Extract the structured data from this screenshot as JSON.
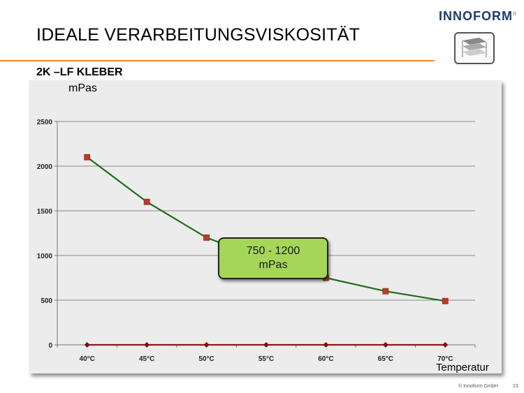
{
  "header": {
    "title": "IDEALE VERARBEITUNGSVISKOSITÄT",
    "logo_text": "INNOFORM",
    "logo_mark": "®",
    "subtitle": "2K –LF KLEBER"
  },
  "chart_data": {
    "type": "line",
    "categories": [
      "40°C",
      "45°C",
      "50°C",
      "55°C",
      "60°C",
      "65°C",
      "70°C"
    ],
    "series": [
      {
        "values": [
          2100,
          1600,
          1200,
          950,
          750,
          600,
          490
        ],
        "color": "#1a6e1a",
        "marker": "square",
        "marker_color": "#c0392b"
      },
      {
        "values": [
          0,
          0,
          0,
          0,
          0,
          0,
          0
        ],
        "color": "#8b1a1a",
        "marker": "diamond",
        "marker_color": "#7a1010"
      }
    ],
    "yticks": [
      0,
      500,
      1000,
      1500,
      2000,
      2500
    ],
    "ylim": [
      0,
      2500
    ],
    "ylabel": "mPas",
    "xlabel": "Temperatur",
    "grid": true,
    "annotation": {
      "line1": "750 - 1200",
      "line2": "mPas"
    }
  },
  "footer": {
    "copyright": "© Innoform GmbH",
    "page": "23"
  }
}
